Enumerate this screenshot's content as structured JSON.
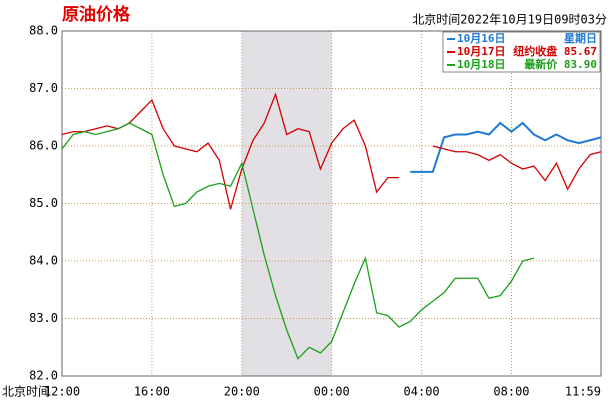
{
  "chart_data": {
    "type": "line",
    "title": "原油价格",
    "subtitle": "北京时间2022年10月19日09时03分",
    "xlabel": "北京时间",
    "x": [
      "12:00",
      "12:30",
      "13:00",
      "13:30",
      "14:00",
      "14:30",
      "15:00",
      "15:30",
      "16:00",
      "16:30",
      "17:00",
      "17:30",
      "18:00",
      "18:30",
      "19:00",
      "19:30",
      "20:00",
      "20:30",
      "21:00",
      "21:30",
      "22:00",
      "22:30",
      "23:00",
      "23:30",
      "00:00",
      "00:30",
      "01:00",
      "01:30",
      "02:00",
      "02:30",
      "03:00",
      "03:30",
      "04:00",
      "04:30",
      "05:00",
      "05:30",
      "06:00",
      "06:30",
      "07:00",
      "07:30",
      "08:00",
      "08:30",
      "09:00",
      "09:30",
      "10:00",
      "10:30",
      "11:00",
      "11:30",
      "11:59"
    ],
    "xlim": [
      "12:00",
      "11:59"
    ],
    "xticks": [
      "12:00",
      "16:00",
      "20:00",
      "00:00",
      "04:00",
      "08:00",
      "11:59"
    ],
    "highlight": [
      "20:00",
      "00:00"
    ],
    "ylim": [
      82,
      88
    ],
    "yticks": [
      {
        "value": 82,
        "label": "82.0"
      },
      {
        "value": 83,
        "label": "83.0"
      },
      {
        "value": 84,
        "label": "84.0"
      },
      {
        "value": 85,
        "label": "85.0"
      },
      {
        "value": 86,
        "label": "86.0"
      },
      {
        "value": 87,
        "label": "87.0"
      },
      {
        "value": 88,
        "label": "88.0"
      }
    ],
    "grid": true,
    "legend": "top-right",
    "series": [
      {
        "name": "10月16日",
        "note": "星期日",
        "color": "#1e7ad6",
        "values": [
          null,
          null,
          null,
          null,
          null,
          null,
          null,
          null,
          null,
          null,
          null,
          null,
          null,
          null,
          null,
          null,
          null,
          null,
          null,
          null,
          null,
          null,
          null,
          null,
          null,
          null,
          null,
          null,
          null,
          null,
          null,
          85.55,
          85.55,
          85.55,
          86.15,
          86.2,
          86.2,
          86.25,
          86.2,
          86.4,
          86.25,
          86.4,
          86.2,
          86.1,
          86.2,
          86.1,
          86.05,
          86.1,
          86.15
        ]
      },
      {
        "name": "10月17日",
        "note": "纽约收盘 85.67",
        "color": "#d40000",
        "values": [
          86.2,
          86.25,
          86.25,
          86.3,
          86.35,
          86.3,
          86.4,
          86.6,
          86.8,
          86.3,
          86.0,
          85.95,
          85.9,
          86.05,
          85.75,
          84.9,
          85.6,
          86.1,
          86.4,
          86.9,
          86.2,
          86.3,
          86.25,
          85.6,
          86.05,
          86.3,
          86.45,
          86.0,
          85.2,
          85.45,
          85.45,
          null,
          null,
          86.0,
          85.95,
          85.9,
          85.9,
          85.85,
          85.75,
          85.85,
          85.7,
          85.6,
          85.65,
          85.4,
          85.7,
          85.25,
          85.6,
          85.85,
          85.9
        ]
      },
      {
        "name": "10月18日",
        "note": "最新价 83.90",
        "color": "#1aa01a",
        "values": [
          85.95,
          86.2,
          86.25,
          86.2,
          86.25,
          86.3,
          86.4,
          86.3,
          86.2,
          85.5,
          84.95,
          85.0,
          85.2,
          85.3,
          85.35,
          85.3,
          85.7,
          84.9,
          84.1,
          83.4,
          82.8,
          82.3,
          82.5,
          82.4,
          82.6,
          83.1,
          83.6,
          84.05,
          83.1,
          83.05,
          82.85,
          82.95,
          83.15,
          83.3,
          83.45,
          83.7,
          83.7,
          83.7,
          83.35,
          83.4,
          83.65,
          84.0,
          84.05,
          null,
          null,
          null,
          null,
          null,
          null
        ]
      }
    ]
  }
}
